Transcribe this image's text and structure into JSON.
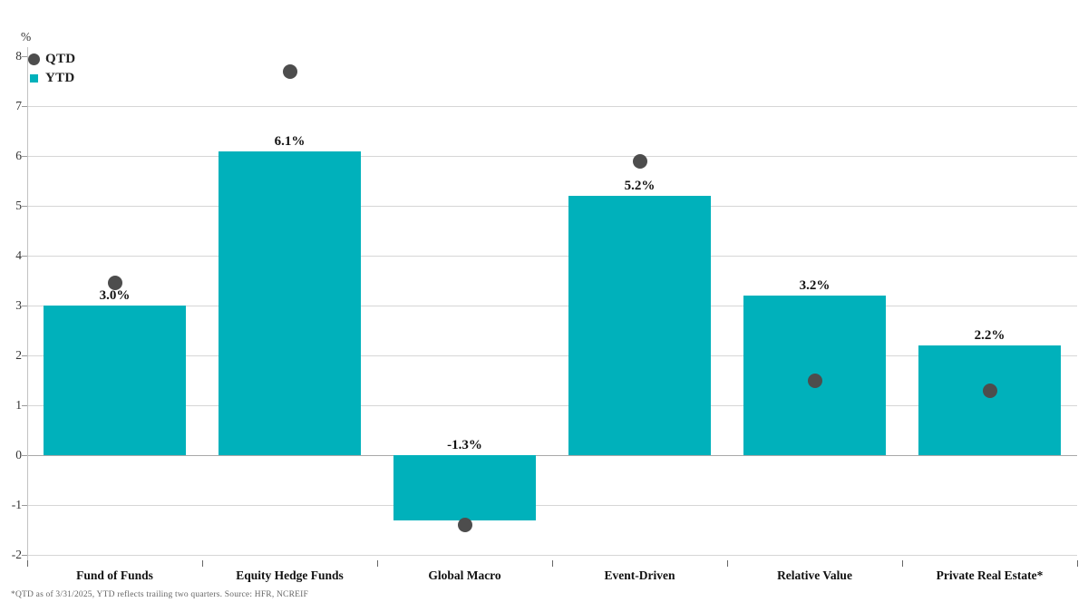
{
  "chart": {
    "unit_label": "%",
    "legend": [
      {
        "label": "QTD",
        "marker": "circle",
        "color": "#4d4d4d"
      },
      {
        "label": "YTD",
        "marker": "square",
        "color": "#00b1bb"
      }
    ],
    "footnote": "*QTD as of 3/31/2025, YTD reflects trailing two quarters. Source: HFR, NCREIF"
  },
  "chart_data": {
    "type": "bar",
    "title": "",
    "ylabel": "%",
    "ylim": [
      -2,
      8
    ],
    "yticks": [
      8,
      7,
      6,
      5,
      4,
      3,
      2,
      1,
      0,
      -1,
      -2
    ],
    "grid": true,
    "legend_position": "top-left",
    "categories": [
      "Fund of Funds",
      "Equity Hedge Funds",
      "Global Macro",
      "Event-Driven",
      "Relative Value",
      "Private Real Estate*"
    ],
    "series": [
      {
        "name": "YTD",
        "type": "bar",
        "color": "#00b1bb",
        "values": [
          3.0,
          6.1,
          -1.3,
          5.2,
          3.2,
          2.2
        ],
        "data_labels": [
          "3.0%",
          "6.1%",
          "-1.3%",
          "5.2%",
          "3.2%",
          "2.2%"
        ]
      },
      {
        "name": "QTD",
        "type": "scatter",
        "color": "#4d4d4d",
        "values": [
          3.45,
          7.7,
          -1.4,
          5.9,
          1.5,
          1.3
        ]
      }
    ]
  }
}
